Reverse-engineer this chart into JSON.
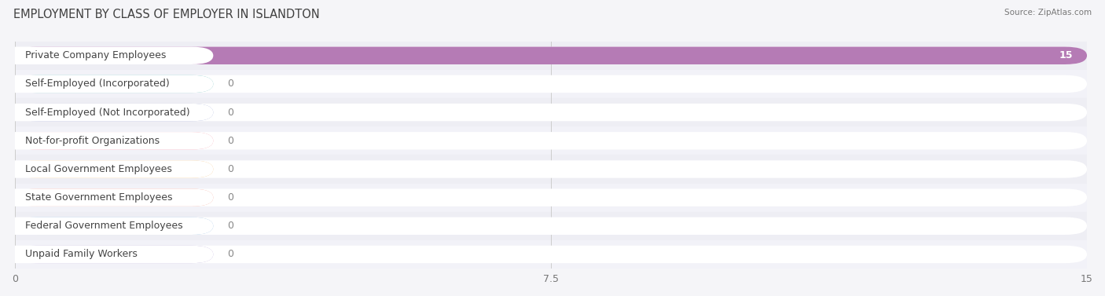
{
  "title": "EMPLOYMENT BY CLASS OF EMPLOYER IN ISLANDTON",
  "source": "Source: ZipAtlas.com",
  "categories": [
    "Private Company Employees",
    "Self-Employed (Incorporated)",
    "Self-Employed (Not Incorporated)",
    "Not-for-profit Organizations",
    "Local Government Employees",
    "State Government Employees",
    "Federal Government Employees",
    "Unpaid Family Workers"
  ],
  "values": [
    15,
    0,
    0,
    0,
    0,
    0,
    0,
    0
  ],
  "bar_colors": [
    "#b57bb5",
    "#6dbfbf",
    "#9fa8d5",
    "#f599a8",
    "#f5c07a",
    "#f4a090",
    "#90b8e0",
    "#b8a8d8"
  ],
  "xlim": [
    0,
    15
  ],
  "xticks": [
    0,
    7.5,
    15
  ],
  "background_color": "#f5f5f8",
  "row_colors": [
    "#eeeef4",
    "#f2f2f8"
  ],
  "title_fontsize": 10.5,
  "label_fontsize": 9,
  "value_fontsize": 9
}
